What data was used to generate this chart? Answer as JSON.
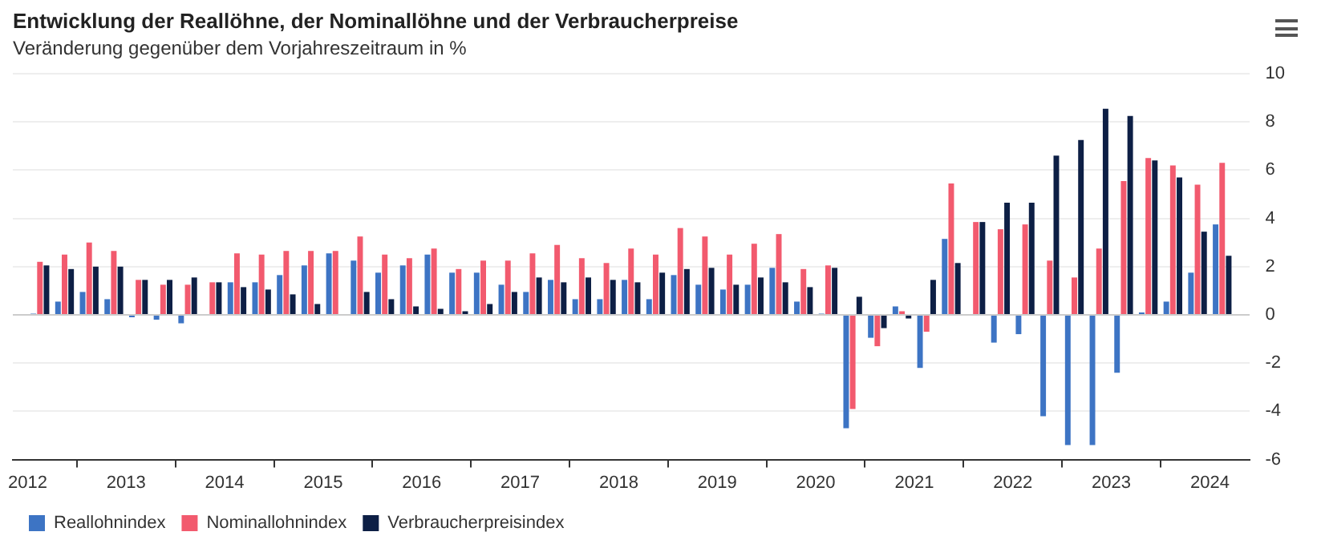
{
  "chart_data": {
    "type": "bar",
    "title": "Entwicklung der Reallöhne, der Nominallöhne und der Verbraucherpreise",
    "subtitle": "Veränderung gegenüber dem Vorjahreszeitraum in %",
    "x": [
      2012.125,
      2012.375,
      2012.625,
      2012.875,
      2013.125,
      2013.375,
      2013.625,
      2013.875,
      2014.125,
      2014.375,
      2014.625,
      2014.875,
      2015.125,
      2015.375,
      2015.625,
      2015.875,
      2016.125,
      2016.375,
      2016.625,
      2016.875,
      2017.125,
      2017.375,
      2017.625,
      2017.875,
      2018.125,
      2018.375,
      2018.625,
      2018.875,
      2019.125,
      2019.375,
      2019.625,
      2019.875,
      2020.125,
      2020.375,
      2020.625,
      2020.875,
      2021.125,
      2021.375,
      2021.625,
      2021.875,
      2022.125,
      2022.375,
      2022.625,
      2022.875,
      2023.125,
      2023.375,
      2023.625,
      2023.875,
      2024.125
    ],
    "series": [
      {
        "name": "Reallohnindex",
        "color": "#3d74c4",
        "values": [
          0.05,
          0.55,
          0.95,
          0.65,
          -0.1,
          -0.2,
          -0.35,
          0,
          1.35,
          1.35,
          1.65,
          2.05,
          2.55,
          2.25,
          1.75,
          2.05,
          2.5,
          1.75,
          1.75,
          1.25,
          0.95,
          1.45,
          0.65,
          0.65,
          1.45,
          0.65,
          1.65,
          1.25,
          1.05,
          1.25,
          1.95,
          0.55,
          0.05,
          -4.7,
          -0.95,
          0.35,
          -2.2,
          3.15,
          0,
          -1.15,
          -0.8,
          -4.2,
          -5.4,
          -5.4,
          -2.4,
          0.1,
          0.55,
          1.75,
          3.75
        ]
      },
      {
        "name": "Nominallohnindex",
        "color": "#f25a6e",
        "values": [
          2.2,
          2.5,
          3.0,
          2.65,
          1.45,
          1.25,
          1.25,
          1.35,
          2.55,
          2.5,
          2.65,
          2.65,
          2.65,
          3.25,
          2.5,
          2.35,
          2.75,
          1.9,
          2.25,
          2.25,
          2.55,
          2.9,
          2.35,
          2.15,
          2.75,
          2.5,
          3.6,
          3.25,
          2.5,
          2.95,
          3.35,
          1.9,
          2.05,
          -3.9,
          -1.3,
          0.15,
          -0.7,
          5.45,
          3.85,
          3.55,
          3.75,
          2.25,
          1.55,
          2.75,
          5.55,
          6.5,
          6.2,
          5.4,
          6.3
        ]
      },
      {
        "name": "Verbraucherpreisindex",
        "color": "#0d1f45",
        "values": [
          2.05,
          1.9,
          2.0,
          2.0,
          1.45,
          1.45,
          1.55,
          1.35,
          1.15,
          1.05,
          0.85,
          0.45,
          0,
          0.95,
          0.65,
          0.35,
          0.25,
          0.15,
          0.45,
          0.95,
          1.55,
          1.35,
          1.55,
          1.45,
          1.35,
          1.75,
          1.9,
          1.95,
          1.25,
          1.55,
          1.35,
          1.15,
          1.95,
          0.75,
          -0.55,
          -0.15,
          1.45,
          2.15,
          3.85,
          4.65,
          4.65,
          6.6,
          7.25,
          8.55,
          8.25,
          6.4,
          5.7,
          3.45,
          2.45
        ]
      }
    ],
    "xlim": [
      2011.85,
      2024.4
    ],
    "xticks": [
      2012,
      2013,
      2014,
      2015,
      2016,
      2017,
      2018,
      2019,
      2020,
      2021,
      2022,
      2023,
      2024
    ],
    "ylim": [
      -6,
      10
    ],
    "yticks": [
      -6,
      -4,
      -2,
      0,
      2,
      4,
      6,
      8,
      10
    ],
    "grid": "y",
    "legend": "bottom left"
  }
}
